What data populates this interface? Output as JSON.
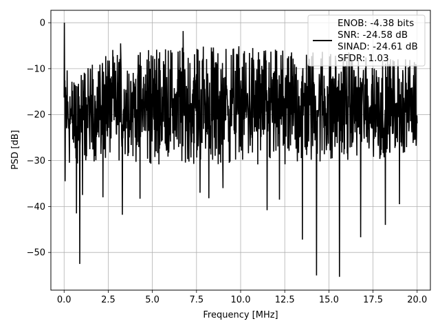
{
  "chart_data": {
    "type": "line",
    "xlabel": "Frequency [MHz]",
    "ylabel": "PSD [dB]",
    "xlim": [
      -0.75,
      20.75
    ],
    "ylim": [
      -58.2,
      2.7
    ],
    "xticks": [
      0.0,
      2.5,
      5.0,
      7.5,
      10.0,
      12.5,
      15.0,
      17.5,
      20.0
    ],
    "xtick_labels": [
      "0.0",
      "2.5",
      "5.0",
      "7.5",
      "10.0",
      "12.5",
      "15.0",
      "17.5",
      "20.0"
    ],
    "yticks": [
      0,
      -10,
      -20,
      -30,
      -40,
      -50
    ],
    "ytick_labels": [
      "0",
      "−10",
      "−20",
      "−30",
      "−40",
      "−50"
    ],
    "grid": true,
    "legend_position": "top-right",
    "series": [
      {
        "color": "#000000",
        "x_range": [
          0.0,
          20.0
        ],
        "legend_lines": [
          "ENOB: -4.38 bits",
          "SNR: -24.58 dB",
          "SINAD: -24.61 dB",
          "SFDR: 1.03"
        ],
        "peaks": [
          {
            "x": 0.02,
            "y": 0.0
          },
          {
            "x": 6.75,
            "y": -1.8
          },
          {
            "x": 3.2,
            "y": -4.5
          }
        ],
        "dips": [
          {
            "x": 0.06,
            "y": -34.5
          },
          {
            "x": 0.7,
            "y": -41.5
          },
          {
            "x": 0.88,
            "y": -52.5
          },
          {
            "x": 1.05,
            "y": -37.5
          },
          {
            "x": 2.2,
            "y": -38.0
          },
          {
            "x": 3.3,
            "y": -41.8
          },
          {
            "x": 4.3,
            "y": -38.3
          },
          {
            "x": 7.7,
            "y": -37.0
          },
          {
            "x": 8.2,
            "y": -38.2
          },
          {
            "x": 9.0,
            "y": -36.0
          },
          {
            "x": 11.5,
            "y": -40.8
          },
          {
            "x": 12.2,
            "y": -38.5
          },
          {
            "x": 13.5,
            "y": -47.2
          },
          {
            "x": 14.3,
            "y": -55.0
          },
          {
            "x": 15.6,
            "y": -55.3
          },
          {
            "x": 16.8,
            "y": -46.7
          },
          {
            "x": 18.2,
            "y": -44.0
          },
          {
            "x": 19.0,
            "y": -39.5
          }
        ],
        "envelope": {
          "x": [
            0.0,
            0.5,
            2.5,
            5.0,
            7.5,
            10.0,
            12.5,
            15.0,
            17.5,
            20.0
          ],
          "top": [
            -5.0,
            -12.0,
            -6.0,
            -5.0,
            -5.0,
            -5.0,
            -6.0,
            -6.0,
            -7.0,
            -8.0
          ],
          "bottom": [
            -30.0,
            -31.0,
            -30.0,
            -31.0,
            -31.0,
            -31.0,
            -31.0,
            -30.0,
            -30.0,
            -28.0
          ]
        }
      }
    ]
  }
}
